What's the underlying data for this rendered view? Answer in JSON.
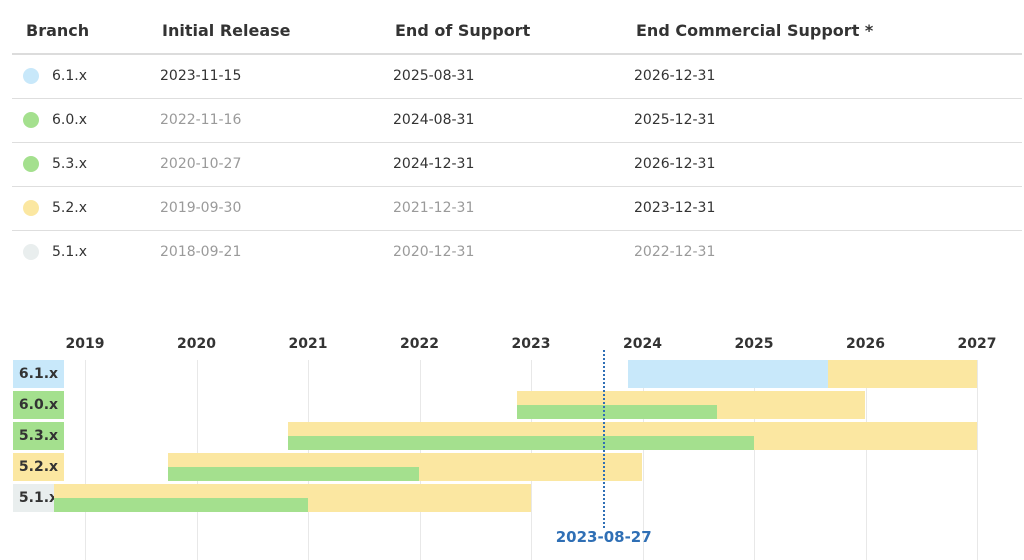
{
  "table": {
    "headers": [
      "Branch",
      "Initial Release",
      "End of Support",
      "End Commercial Support *"
    ],
    "rows": [
      {
        "branch": "6.1.x",
        "dot_color": "#c8e8fa",
        "initial": "2023-11-15",
        "eos": "2025-08-31",
        "ecs": "2026-12-31",
        "muted": [
          false,
          false,
          false
        ]
      },
      {
        "branch": "6.0.x",
        "dot_color": "#a4e08e",
        "initial": "2022-11-16",
        "eos": "2024-08-31",
        "ecs": "2025-12-31",
        "muted": [
          true,
          false,
          false
        ]
      },
      {
        "branch": "5.3.x",
        "dot_color": "#a4e08e",
        "initial": "2020-10-27",
        "eos": "2024-12-31",
        "ecs": "2026-12-31",
        "muted": [
          true,
          false,
          false
        ]
      },
      {
        "branch": "5.2.x",
        "dot_color": "#fbe7a1",
        "initial": "2019-09-30",
        "eos": "2021-12-31",
        "ecs": "2023-12-31",
        "muted": [
          true,
          true,
          false
        ]
      },
      {
        "branch": "5.1.x",
        "dot_color": "#e9eeee",
        "initial": "2018-09-21",
        "eos": "2020-12-31",
        "ecs": "2022-12-31",
        "muted": [
          true,
          true,
          true
        ]
      }
    ]
  },
  "timeline": {
    "years": [
      "2019",
      "2020",
      "2021",
      "2022",
      "2023",
      "2024",
      "2025",
      "2026",
      "2027"
    ],
    "today": "2023-08-27",
    "colors": {
      "oss": "#a4e08e",
      "commercial": "#fbe7a1",
      "upcoming": "#c8e8fa",
      "label_6_1": "#c8e8fa",
      "label_green": "#a4e08e",
      "label_yellow": "#fbe7a1",
      "label_grey": "#e9eeee",
      "today_line": "#2f6fb5"
    },
    "branches": [
      {
        "name": "6.1.x",
        "label_color": "#c8e8fa",
        "segments": [
          {
            "start": "2023-11-15",
            "end": "2025-08-31",
            "color": "#c8e8fa",
            "half": "full"
          },
          {
            "start": "2025-08-31",
            "end": "2026-12-31",
            "color": "#fbe7a1",
            "half": "full"
          }
        ]
      },
      {
        "name": "6.0.x",
        "label_color": "#a4e08e",
        "segments": [
          {
            "start": "2022-11-16",
            "end": "2025-12-31",
            "color": "#fbe7a1",
            "half": "full"
          },
          {
            "start": "2022-11-16",
            "end": "2024-08-31",
            "color": "#a4e08e",
            "half": "bottom"
          }
        ]
      },
      {
        "name": "5.3.x",
        "label_color": "#a4e08e",
        "segments": [
          {
            "start": "2020-10-27",
            "end": "2026-12-31",
            "color": "#fbe7a1",
            "half": "full"
          },
          {
            "start": "2020-10-27",
            "end": "2024-12-31",
            "color": "#a4e08e",
            "half": "bottom"
          }
        ]
      },
      {
        "name": "5.2.x",
        "label_color": "#fbe7a1",
        "segments": [
          {
            "start": "2019-09-30",
            "end": "2023-12-31",
            "color": "#fbe7a1",
            "half": "full"
          },
          {
            "start": "2019-09-30",
            "end": "2021-12-31",
            "color": "#a4e08e",
            "half": "bottom"
          }
        ]
      },
      {
        "name": "5.1.x",
        "label_color": "#e9eeee",
        "segments": [
          {
            "start": "2018-09-21",
            "end": "2022-12-31",
            "color": "#fbe7a1",
            "half": "full"
          },
          {
            "start": "2018-09-21",
            "end": "2020-12-31",
            "color": "#a4e08e",
            "half": "bottom"
          }
        ]
      }
    ]
  }
}
